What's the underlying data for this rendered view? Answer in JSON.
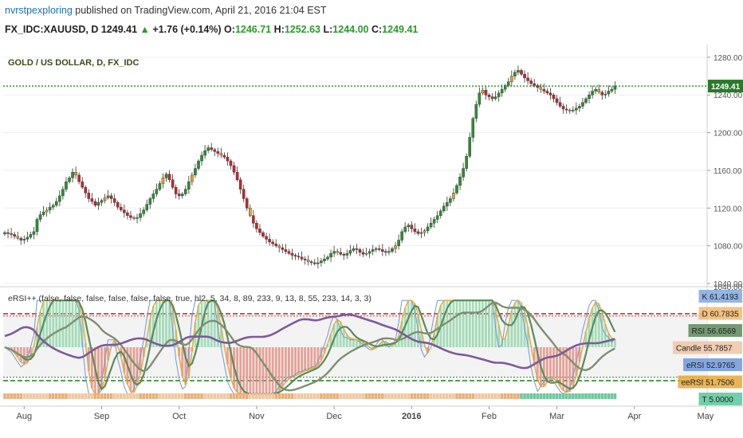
{
  "header": {
    "user": "nvrstpexploring",
    "published": "published on TradingView.com, April 21, 2016 21:04 EST",
    "symbol": "FX_IDC:XAUUSD, D",
    "last": "1249.41",
    "arrow": "▲",
    "change": "+1.76 (+0.14%)",
    "o_label": "O:",
    "o": "1246.71",
    "h_label": "H:",
    "h": "1252.63",
    "l_label": "L:",
    "l": "1244.00",
    "c_label": "C:",
    "c": "1249.41"
  },
  "colors": {
    "up": "#2f8f2f",
    "down": "#c0282d",
    "neutral": "#e0a030",
    "grid": "#eeeeee",
    "current_line": "#1a8f1a"
  },
  "chart_data": [
    {
      "type": "candlestick",
      "title": "GOLD / US DOLLAR, D, FX_IDC",
      "ylim": [
        1040,
        1290
      ],
      "y_ticks": [
        "1280.00",
        "1240.00",
        "1200.00",
        "1160.00",
        "1120.00",
        "1080.00",
        "1040.00"
      ],
      "y_tick_values": [
        1280,
        1240,
        1200,
        1160,
        1120,
        1080,
        1040
      ],
      "current_price": 1249.41,
      "current_price_label": "1249.41",
      "close_series": [
        1094,
        1093,
        1092,
        1090,
        1088,
        1086,
        1087,
        1089,
        1092,
        1095,
        1108,
        1113,
        1116,
        1118,
        1121,
        1123,
        1127,
        1133,
        1140,
        1148,
        1152,
        1158,
        1155,
        1148,
        1142,
        1136,
        1130,
        1127,
        1123,
        1126,
        1128,
        1131,
        1133,
        1130,
        1126,
        1121,
        1118,
        1115,
        1112,
        1110,
        1109,
        1110,
        1114,
        1118,
        1124,
        1130,
        1135,
        1140,
        1146,
        1152,
        1156,
        1150,
        1142,
        1135,
        1133,
        1135,
        1140,
        1148,
        1155,
        1162,
        1170,
        1176,
        1181,
        1184,
        1182,
        1180,
        1178,
        1176,
        1174,
        1170,
        1165,
        1158,
        1150,
        1140,
        1130,
        1120,
        1112,
        1104,
        1098,
        1094,
        1090,
        1087,
        1084,
        1082,
        1080,
        1078,
        1076,
        1074,
        1072,
        1070,
        1069,
        1068,
        1066,
        1065,
        1063,
        1062,
        1061,
        1062,
        1064,
        1066,
        1068,
        1072,
        1074,
        1073,
        1071,
        1070,
        1072,
        1075,
        1077,
        1076,
        1073,
        1071,
        1072,
        1074,
        1076,
        1077,
        1076,
        1074,
        1073,
        1074,
        1077,
        1080,
        1086,
        1095,
        1100,
        1102,
        1098,
        1095,
        1093,
        1094,
        1096,
        1100,
        1104,
        1108,
        1112,
        1117,
        1122,
        1126,
        1130,
        1136,
        1144,
        1153,
        1162,
        1175,
        1195,
        1215,
        1230,
        1242,
        1245,
        1240,
        1238,
        1236,
        1238,
        1242,
        1246,
        1250,
        1254,
        1260,
        1264,
        1266,
        1262,
        1258,
        1255,
        1252,
        1250,
        1248,
        1246,
        1244,
        1242,
        1240,
        1236,
        1232,
        1228,
        1225,
        1224,
        1223,
        1224,
        1226,
        1228,
        1232,
        1236,
        1240,
        1244,
        1246,
        1243,
        1240,
        1241,
        1244,
        1246,
        1249.41
      ],
      "x_labels": [
        "Aug",
        "Sep",
        "Oct",
        "Nov",
        "Dec",
        "2016",
        "Feb",
        "Mar",
        "Apr",
        "May"
      ],
      "x_label_index": [
        6,
        30,
        54,
        78,
        102,
        126,
        150,
        171,
        195,
        217
      ]
    },
    {
      "type": "line",
      "title": "eRSI++ (false, false, false, false, false, false, true, hl2, 5, 34, 8, 89, 233, 9, 13, 8, 55, 233, 14, 3, 3)",
      "ylim": [
        0,
        100
      ],
      "levels": [
        80,
        78,
        23,
        20
      ],
      "series": [
        {
          "name": "K",
          "value_label": "61.4193",
          "value": 61.4193,
          "color": "#7fa8e0"
        },
        {
          "name": "D",
          "value_label": "60.7835",
          "value": 60.7835,
          "color": "#f2b96b"
        },
        {
          "name": "RSI",
          "value_label": "56.6569",
          "value": 56.6569,
          "color": "#5b8a5b"
        },
        {
          "name": "Candle",
          "value_label": "55.7857",
          "value": 55.7857,
          "color": "#f0c4a6"
        },
        {
          "name": "eRSI",
          "value_label": "52.9765",
          "value": 52.9765,
          "color": "#6e98dc"
        },
        {
          "name": "eeRSI",
          "value_label": "51.7506",
          "value": 51.7506,
          "color": "#e8a838"
        },
        {
          "name": "T",
          "value_label": "5.0000",
          "value": 5.0,
          "color": "#58c79a"
        }
      ],
      "top_label": "1040.00"
    }
  ]
}
